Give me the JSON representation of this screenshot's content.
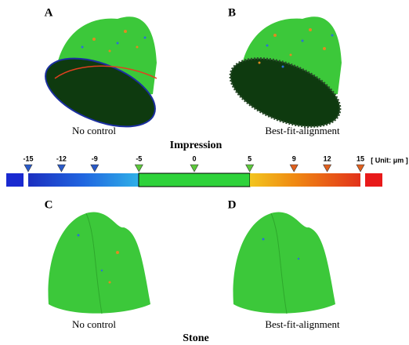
{
  "panels": [
    {
      "label": "A",
      "caption": "No control"
    },
    {
      "label": "B",
      "caption": "Best-fit-alignment"
    },
    {
      "label": "C",
      "caption": "No control"
    },
    {
      "label": "D",
      "caption": "Best-fit-alignment"
    }
  ],
  "sections": [
    "Impression",
    "Stone"
  ],
  "scale": {
    "ticks": [
      -15,
      -12,
      -9,
      -5,
      0,
      5,
      9,
      12,
      15
    ],
    "unit_label": "[ Unit: μm ]"
  }
}
